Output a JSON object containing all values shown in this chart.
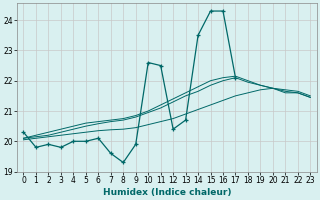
{
  "xlabel": "Humidex (Indice chaleur)",
  "bg_color": "#d9f0f0",
  "grid_color": "#c8c8c8",
  "line_color": "#006868",
  "xlim": [
    -0.5,
    23.5
  ],
  "ylim": [
    19.0,
    24.55
  ],
  "yticks": [
    19,
    20,
    21,
    22,
    23,
    24
  ],
  "xticks": [
    0,
    1,
    2,
    3,
    4,
    5,
    6,
    7,
    8,
    9,
    10,
    11,
    12,
    13,
    14,
    15,
    16,
    17,
    18,
    19,
    20,
    21,
    22,
    23
  ],
  "series1_y": [
    20.3,
    19.8,
    19.9,
    19.8,
    20.0,
    20.0,
    20.1,
    19.6,
    19.3,
    19.9,
    22.6,
    22.5,
    20.4,
    20.7,
    23.5,
    24.3,
    24.3,
    22.1,
    null,
    null,
    null,
    null,
    null,
    null
  ],
  "series2_y": [
    20.05,
    20.1,
    20.15,
    20.2,
    20.25,
    20.3,
    20.35,
    20.38,
    20.4,
    20.45,
    20.55,
    20.65,
    20.75,
    20.9,
    21.05,
    21.2,
    21.35,
    21.5,
    21.6,
    21.7,
    21.75,
    21.6,
    21.6,
    21.45
  ],
  "series3_y": [
    20.1,
    20.15,
    20.2,
    20.3,
    20.4,
    20.5,
    20.58,
    20.65,
    20.7,
    20.8,
    20.95,
    21.1,
    21.3,
    21.5,
    21.65,
    21.85,
    22.0,
    22.1,
    21.95,
    21.85,
    21.75,
    21.65,
    21.6,
    21.45
  ],
  "series4_y": [
    20.1,
    20.2,
    20.3,
    20.4,
    20.5,
    20.6,
    20.65,
    20.7,
    20.75,
    20.85,
    21.0,
    21.2,
    21.4,
    21.6,
    21.8,
    22.0,
    22.1,
    22.15,
    22.0,
    21.85,
    21.75,
    21.7,
    21.65,
    21.5
  ]
}
